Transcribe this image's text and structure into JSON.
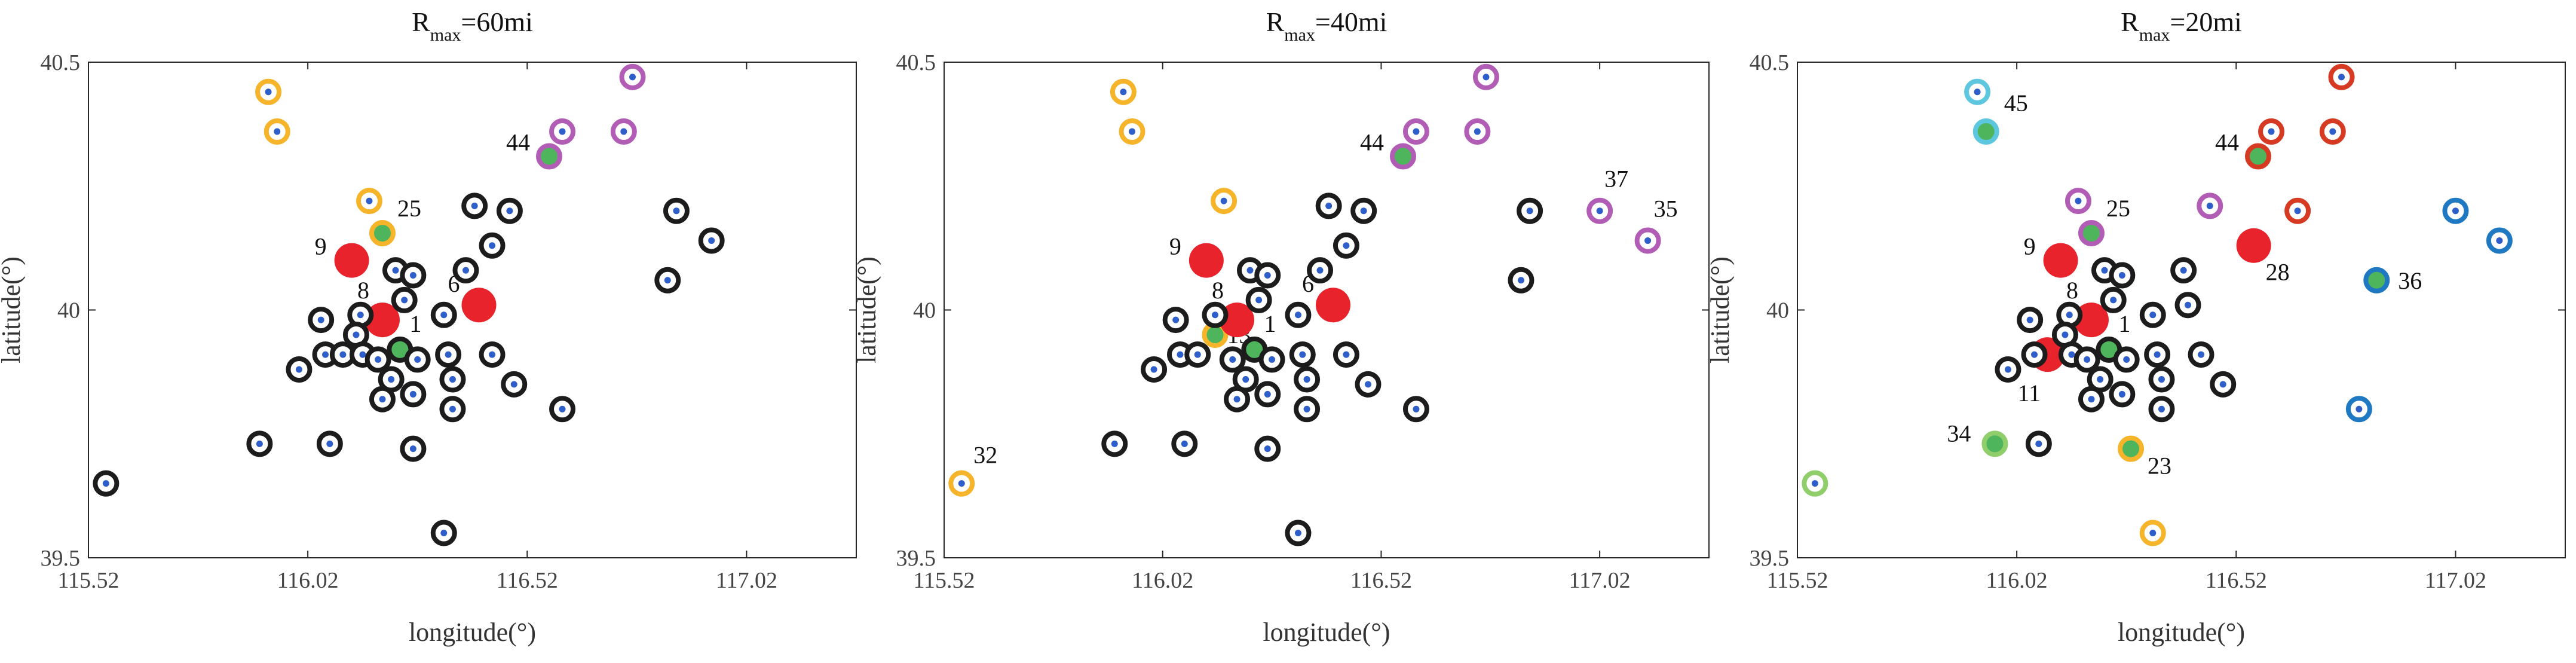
{
  "figure": {
    "ylabel": "latitude(°)",
    "xlabel": "longitude(°)"
  },
  "colors": {
    "black": "#1c1c1c",
    "blue_dot": "#2e5ec9",
    "orange": "#f5b42a",
    "purple": "#b25db5",
    "green_fill": "#4fb55d",
    "red": "#e8232b",
    "cyan": "#5ec7e0",
    "dark_red": "#d63a23",
    "light_green": "#8fce6b",
    "blue_ring": "#1f79c2"
  },
  "chart_data": [
    {
      "type": "scatter",
      "title_main": "R",
      "title_sub": "max",
      "title_rest": "=60mi",
      "xlabel": "longitude(°)",
      "ylabel": "latitude(°)",
      "xlim": [
        115.52,
        117.27
      ],
      "ylim": [
        39.5,
        40.5
      ],
      "xticks": [
        "115.52",
        "116.02",
        "116.52",
        "117.02"
      ],
      "yticks": [
        "39.5",
        "40",
        "40.5"
      ],
      "points": [
        {
          "x": 115.93,
          "y": 40.44,
          "c": "orange",
          "t": "ring"
        },
        {
          "x": 115.95,
          "y": 40.36,
          "c": "orange",
          "t": "ring"
        },
        {
          "x": 116.16,
          "y": 40.22,
          "c": "orange",
          "t": "ring"
        },
        {
          "x": 116.19,
          "y": 40.155,
          "c": "orange",
          "t": "ring",
          "f": "green_fill",
          "label": "25",
          "lx": 25,
          "ly": -28
        },
        {
          "x": 116.76,
          "y": 40.47,
          "c": "purple",
          "t": "ring"
        },
        {
          "x": 116.74,
          "y": 40.36,
          "c": "purple",
          "t": "ring"
        },
        {
          "x": 116.6,
          "y": 40.36,
          "c": "purple",
          "t": "ring"
        },
        {
          "x": 116.57,
          "y": 40.31,
          "c": "purple",
          "t": "ring",
          "f": "green_fill",
          "label": "44",
          "lx": -72,
          "ly": -10
        },
        {
          "x": 116.12,
          "y": 40.1,
          "t": "red",
          "label": "9",
          "lx": -62,
          "ly": -10
        },
        {
          "x": 116.19,
          "y": 39.98,
          "t": "red",
          "label": "8",
          "lx": -42,
          "ly": -36
        },
        {
          "x": 116.41,
          "y": 40.01,
          "t": "red",
          "label": "6",
          "lx": -52,
          "ly": -22
        },
        {
          "x": 116.23,
          "y": 39.92,
          "c": "black",
          "t": "ring",
          "f": "green_fill",
          "label": "1",
          "lx": 16,
          "ly": -30
        },
        {
          "x": 116.4,
          "y": 40.21,
          "c": "black",
          "t": "ring"
        },
        {
          "x": 116.48,
          "y": 40.2,
          "c": "black",
          "t": "ring"
        },
        {
          "x": 116.44,
          "y": 40.13,
          "c": "black",
          "t": "ring"
        },
        {
          "x": 116.38,
          "y": 40.08,
          "c": "black",
          "t": "ring"
        },
        {
          "x": 116.22,
          "y": 40.08,
          "c": "black",
          "t": "ring"
        },
        {
          "x": 116.26,
          "y": 40.07,
          "c": "black",
          "t": "ring"
        },
        {
          "x": 116.24,
          "y": 40.02,
          "c": "black",
          "t": "ring"
        },
        {
          "x": 116.14,
          "y": 39.99,
          "c": "black",
          "t": "ring"
        },
        {
          "x": 116.05,
          "y": 39.98,
          "c": "black",
          "t": "ring"
        },
        {
          "x": 116.13,
          "y": 39.95,
          "c": "black",
          "t": "ring"
        },
        {
          "x": 116.33,
          "y": 39.99,
          "c": "black",
          "t": "ring"
        },
        {
          "x": 116.06,
          "y": 39.91,
          "c": "black",
          "t": "ring"
        },
        {
          "x": 116.1,
          "y": 39.91,
          "c": "black",
          "t": "ring"
        },
        {
          "x": 116.145,
          "y": 39.91,
          "c": "black",
          "t": "ring"
        },
        {
          "x": 116.18,
          "y": 39.9,
          "c": "black",
          "t": "ring"
        },
        {
          "x": 116.27,
          "y": 39.9,
          "c": "black",
          "t": "ring"
        },
        {
          "x": 116.34,
          "y": 39.91,
          "c": "black",
          "t": "ring"
        },
        {
          "x": 116.44,
          "y": 39.91,
          "c": "black",
          "t": "ring"
        },
        {
          "x": 116.0,
          "y": 39.88,
          "c": "black",
          "t": "ring"
        },
        {
          "x": 116.21,
          "y": 39.86,
          "c": "black",
          "t": "ring"
        },
        {
          "x": 116.35,
          "y": 39.86,
          "c": "black",
          "t": "ring"
        },
        {
          "x": 116.49,
          "y": 39.85,
          "c": "black",
          "t": "ring"
        },
        {
          "x": 116.26,
          "y": 39.83,
          "c": "black",
          "t": "ring"
        },
        {
          "x": 116.19,
          "y": 39.82,
          "c": "black",
          "t": "ring"
        },
        {
          "x": 116.35,
          "y": 39.8,
          "c": "black",
          "t": "ring"
        },
        {
          "x": 116.6,
          "y": 39.8,
          "c": "black",
          "t": "ring"
        },
        {
          "x": 116.86,
          "y": 40.2,
          "c": "black",
          "t": "ring"
        },
        {
          "x": 116.94,
          "y": 40.14,
          "c": "black",
          "t": "ring"
        },
        {
          "x": 116.84,
          "y": 40.06,
          "c": "black",
          "t": "ring"
        },
        {
          "x": 115.91,
          "y": 39.73,
          "c": "black",
          "t": "ring"
        },
        {
          "x": 116.07,
          "y": 39.73,
          "c": "black",
          "t": "ring"
        },
        {
          "x": 116.26,
          "y": 39.72,
          "c": "black",
          "t": "ring"
        },
        {
          "x": 115.56,
          "y": 39.65,
          "c": "black",
          "t": "ring"
        },
        {
          "x": 116.33,
          "y": 39.55,
          "c": "black",
          "t": "ring"
        }
      ]
    },
    {
      "type": "scatter",
      "title_main": "R",
      "title_sub": "max",
      "title_rest": "=40mi",
      "xlabel": "longitude(°)",
      "ylabel": "latitude(°)",
      "xlim": [
        115.52,
        117.27
      ],
      "ylim": [
        39.5,
        40.5
      ],
      "xticks": [
        "115.52",
        "116.02",
        "116.52",
        "117.02"
      ],
      "yticks": [
        "39.5",
        "40",
        "40.5"
      ],
      "points": [
        {
          "x": 115.93,
          "y": 40.44,
          "c": "orange",
          "t": "ring"
        },
        {
          "x": 115.95,
          "y": 40.36,
          "c": "orange",
          "t": "ring"
        },
        {
          "x": 116.16,
          "y": 40.22,
          "c": "orange",
          "t": "ring"
        },
        {
          "x": 115.56,
          "y": 39.65,
          "c": "orange",
          "t": "ring",
          "label": "32",
          "lx": 20,
          "ly": -34
        },
        {
          "x": 116.14,
          "y": 39.95,
          "c": "orange",
          "t": "ring",
          "f": "green_fill",
          "label": "13",
          "lx": 20,
          "ly": 14
        },
        {
          "x": 116.76,
          "y": 40.47,
          "c": "purple",
          "t": "ring"
        },
        {
          "x": 116.74,
          "y": 40.36,
          "c": "purple",
          "t": "ring"
        },
        {
          "x": 116.6,
          "y": 40.36,
          "c": "purple",
          "t": "ring"
        },
        {
          "x": 116.57,
          "y": 40.31,
          "c": "purple",
          "t": "ring",
          "f": "green_fill",
          "label": "44",
          "lx": -72,
          "ly": -10
        },
        {
          "x": 117.02,
          "y": 40.2,
          "c": "purple",
          "t": "ring",
          "label": "37",
          "lx": 8,
          "ly": -40
        },
        {
          "x": 117.13,
          "y": 40.14,
          "c": "purple",
          "t": "ring",
          "label": "35",
          "lx": 10,
          "ly": -40
        },
        {
          "x": 116.12,
          "y": 40.1,
          "t": "red",
          "label": "9",
          "lx": -62,
          "ly": -10
        },
        {
          "x": 116.19,
          "y": 39.98,
          "t": "red",
          "label": "8",
          "lx": -42,
          "ly": -36
        },
        {
          "x": 116.41,
          "y": 40.01,
          "t": "red",
          "label": "6",
          "lx": -52,
          "ly": -22
        },
        {
          "x": 116.23,
          "y": 39.92,
          "c": "black",
          "t": "ring",
          "f": "green_fill",
          "label": "1",
          "lx": 16,
          "ly": -30
        },
        {
          "x": 116.4,
          "y": 40.21,
          "c": "black",
          "t": "ring"
        },
        {
          "x": 116.48,
          "y": 40.2,
          "c": "black",
          "t": "ring"
        },
        {
          "x": 116.44,
          "y": 40.13,
          "c": "black",
          "t": "ring"
        },
        {
          "x": 116.38,
          "y": 40.08,
          "c": "black",
          "t": "ring"
        },
        {
          "x": 116.22,
          "y": 40.08,
          "c": "black",
          "t": "ring"
        },
        {
          "x": 116.26,
          "y": 40.07,
          "c": "black",
          "t": "ring"
        },
        {
          "x": 116.24,
          "y": 40.02,
          "c": "black",
          "t": "ring"
        },
        {
          "x": 116.14,
          "y": 39.99,
          "c": "black",
          "t": "ring"
        },
        {
          "x": 116.05,
          "y": 39.98,
          "c": "black",
          "t": "ring"
        },
        {
          "x": 116.33,
          "y": 39.99,
          "c": "black",
          "t": "ring"
        },
        {
          "x": 116.06,
          "y": 39.91,
          "c": "black",
          "t": "ring"
        },
        {
          "x": 116.1,
          "y": 39.91,
          "c": "black",
          "t": "ring"
        },
        {
          "x": 116.18,
          "y": 39.9,
          "c": "black",
          "t": "ring"
        },
        {
          "x": 116.27,
          "y": 39.9,
          "c": "black",
          "t": "ring"
        },
        {
          "x": 116.34,
          "y": 39.91,
          "c": "black",
          "t": "ring"
        },
        {
          "x": 116.44,
          "y": 39.91,
          "c": "black",
          "t": "ring"
        },
        {
          "x": 116.0,
          "y": 39.88,
          "c": "black",
          "t": "ring"
        },
        {
          "x": 116.21,
          "y": 39.86,
          "c": "black",
          "t": "ring"
        },
        {
          "x": 116.35,
          "y": 39.86,
          "c": "black",
          "t": "ring"
        },
        {
          "x": 116.49,
          "y": 39.85,
          "c": "black",
          "t": "ring"
        },
        {
          "x": 116.26,
          "y": 39.83,
          "c": "black",
          "t": "ring"
        },
        {
          "x": 116.19,
          "y": 39.82,
          "c": "black",
          "t": "ring"
        },
        {
          "x": 116.35,
          "y": 39.8,
          "c": "black",
          "t": "ring"
        },
        {
          "x": 116.6,
          "y": 39.8,
          "c": "black",
          "t": "ring"
        },
        {
          "x": 116.86,
          "y": 40.2,
          "c": "black",
          "t": "ring"
        },
        {
          "x": 116.84,
          "y": 40.06,
          "c": "black",
          "t": "ring"
        },
        {
          "x": 115.91,
          "y": 39.73,
          "c": "black",
          "t": "ring"
        },
        {
          "x": 116.07,
          "y": 39.73,
          "c": "black",
          "t": "ring"
        },
        {
          "x": 116.26,
          "y": 39.72,
          "c": "black",
          "t": "ring"
        },
        {
          "x": 116.33,
          "y": 39.55,
          "c": "black",
          "t": "ring"
        }
      ]
    },
    {
      "type": "scatter",
      "title_main": "R",
      "title_sub": "max",
      "title_rest": "=20mi",
      "xlabel": "longitude(°)",
      "ylabel": "latitude(°)",
      "xlim": [
        115.52,
        117.27
      ],
      "ylim": [
        39.5,
        40.5
      ],
      "xticks": [
        "115.52",
        "116.02",
        "116.52",
        "117.02"
      ],
      "yticks": [
        "39.5",
        "40",
        "40.5"
      ],
      "points": [
        {
          "x": 115.93,
          "y": 40.44,
          "c": "cyan",
          "t": "ring"
        },
        {
          "x": 115.95,
          "y": 40.36,
          "c": "cyan",
          "t": "ring",
          "f": "green_fill",
          "label": "45",
          "lx": 30,
          "ly": -34
        },
        {
          "x": 116.16,
          "y": 40.22,
          "c": "purple",
          "t": "ring"
        },
        {
          "x": 116.19,
          "y": 40.155,
          "c": "purple",
          "t": "ring",
          "f": "green_fill",
          "label": "25",
          "lx": 25,
          "ly": -28
        },
        {
          "x": 116.46,
          "y": 40.21,
          "c": "purple",
          "t": "ring"
        },
        {
          "x": 116.76,
          "y": 40.47,
          "c": "dark_red",
          "t": "ring"
        },
        {
          "x": 116.74,
          "y": 40.36,
          "c": "dark_red",
          "t": "ring"
        },
        {
          "x": 116.6,
          "y": 40.36,
          "c": "dark_red",
          "t": "ring"
        },
        {
          "x": 116.66,
          "y": 40.2,
          "c": "dark_red",
          "t": "ring"
        },
        {
          "x": 116.57,
          "y": 40.31,
          "c": "dark_red",
          "t": "ring",
          "f": "green_fill",
          "label": "44",
          "lx": -72,
          "ly": -10
        },
        {
          "x": 116.12,
          "y": 40.1,
          "t": "red",
          "label": "9",
          "lx": -62,
          "ly": -10
        },
        {
          "x": 116.19,
          "y": 39.98,
          "t": "red",
          "label": "8",
          "lx": -42,
          "ly": -36
        },
        {
          "x": 116.56,
          "y": 40.13,
          "t": "red",
          "label": "28",
          "lx": 20,
          "ly": 58
        },
        {
          "x": 116.09,
          "y": 39.91,
          "t": "red",
          "label": "11",
          "lx": -50,
          "ly": 78
        },
        {
          "x": 116.23,
          "y": 39.92,
          "c": "black",
          "t": "ring",
          "f": "green_fill",
          "label": "1",
          "lx": 16,
          "ly": -30
        },
        {
          "x": 117.02,
          "y": 40.2,
          "c": "blue_ring",
          "t": "ring"
        },
        {
          "x": 117.12,
          "y": 40.14,
          "c": "blue_ring",
          "t": "ring"
        },
        {
          "x": 116.84,
          "y": 40.06,
          "c": "blue_ring",
          "t": "ring",
          "f": "green_fill",
          "label": "36",
          "lx": 36,
          "ly": 14
        },
        {
          "x": 116.8,
          "y": 39.8,
          "c": "blue_ring",
          "t": "ring"
        },
        {
          "x": 115.97,
          "y": 39.73,
          "c": "light_green",
          "t": "ring",
          "f": "green_fill",
          "label": "34",
          "lx": -80,
          "ly": -4
        },
        {
          "x": 115.56,
          "y": 39.65,
          "c": "light_green",
          "t": "ring"
        },
        {
          "x": 116.28,
          "y": 39.72,
          "c": "orange",
          "t": "ring",
          "f": "green_fill",
          "label": "23",
          "lx": 28,
          "ly": 42
        },
        {
          "x": 116.33,
          "y": 39.55,
          "c": "orange",
          "t": "ring"
        },
        {
          "x": 116.4,
          "y": 40.08,
          "c": "black",
          "t": "ring"
        },
        {
          "x": 116.22,
          "y": 40.08,
          "c": "black",
          "t": "ring"
        },
        {
          "x": 116.26,
          "y": 40.07,
          "c": "black",
          "t": "ring"
        },
        {
          "x": 116.24,
          "y": 40.02,
          "c": "black",
          "t": "ring"
        },
        {
          "x": 116.14,
          "y": 39.99,
          "c": "black",
          "t": "ring"
        },
        {
          "x": 116.05,
          "y": 39.98,
          "c": "black",
          "t": "ring"
        },
        {
          "x": 116.13,
          "y": 39.95,
          "c": "black",
          "t": "ring"
        },
        {
          "x": 116.33,
          "y": 39.99,
          "c": "black",
          "t": "ring"
        },
        {
          "x": 116.41,
          "y": 40.01,
          "c": "black",
          "t": "ring"
        },
        {
          "x": 116.06,
          "y": 39.91,
          "c": "black",
          "t": "ring"
        },
        {
          "x": 116.145,
          "y": 39.91,
          "c": "black",
          "t": "ring"
        },
        {
          "x": 116.18,
          "y": 39.9,
          "c": "black",
          "t": "ring"
        },
        {
          "x": 116.27,
          "y": 39.9,
          "c": "black",
          "t": "ring"
        },
        {
          "x": 116.34,
          "y": 39.91,
          "c": "black",
          "t": "ring"
        },
        {
          "x": 116.44,
          "y": 39.91,
          "c": "black",
          "t": "ring"
        },
        {
          "x": 116.0,
          "y": 39.88,
          "c": "black",
          "t": "ring"
        },
        {
          "x": 116.21,
          "y": 39.86,
          "c": "black",
          "t": "ring"
        },
        {
          "x": 116.35,
          "y": 39.86,
          "c": "black",
          "t": "ring"
        },
        {
          "x": 116.49,
          "y": 39.85,
          "c": "black",
          "t": "ring"
        },
        {
          "x": 116.26,
          "y": 39.83,
          "c": "black",
          "t": "ring"
        },
        {
          "x": 116.19,
          "y": 39.82,
          "c": "black",
          "t": "ring"
        },
        {
          "x": 116.35,
          "y": 39.8,
          "c": "black",
          "t": "ring"
        },
        {
          "x": 116.07,
          "y": 39.73,
          "c": "black",
          "t": "ring"
        }
      ]
    }
  ]
}
